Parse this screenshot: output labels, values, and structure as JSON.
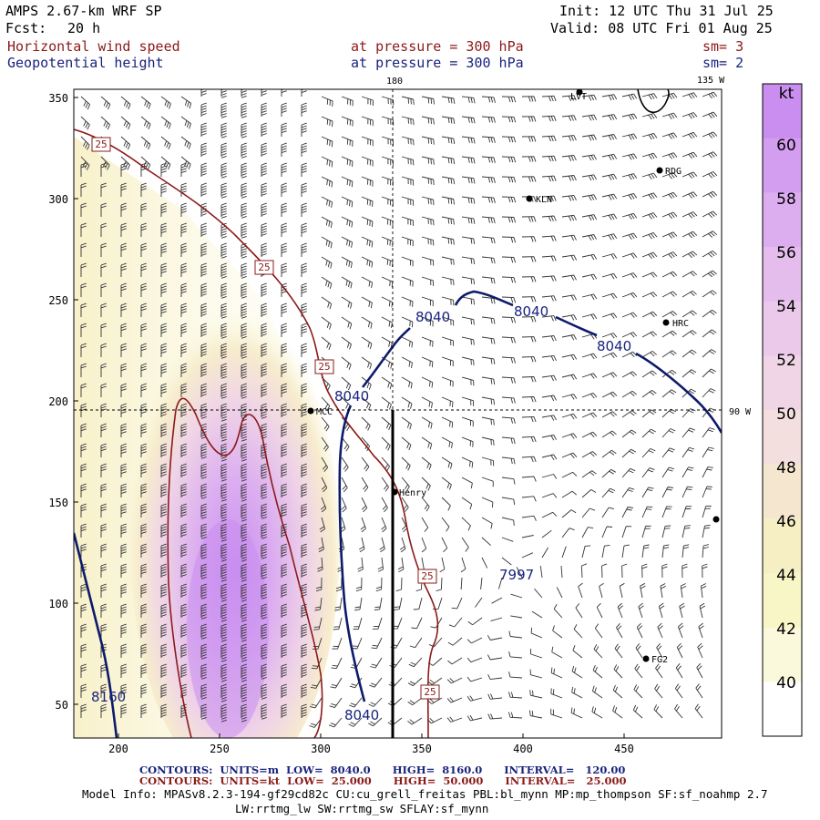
{
  "header": {
    "model": "AMPS 2.67-km WRF SP",
    "init": "Init: 12 UTC Thu 31 Jul 25",
    "fcst_label": "Fcst:",
    "fcst_value": "20 h",
    "valid": "Valid: 08 UTC Fri 01 Aug 25",
    "field1": "Horizontal wind speed",
    "field1_level": "at pressure =  300 hPa",
    "field1_sm": "sm= 3",
    "field2": "Geopotential height",
    "field2_level": "at pressure =  300 hPa",
    "field2_sm": "sm= 2"
  },
  "map": {
    "meridian_180": "180",
    "meridian_135w": "135 W",
    "parallel_90w": "90 W",
    "y_ticks": [
      "350",
      "300",
      "250",
      "200",
      "150",
      "100",
      "50"
    ],
    "x_ticks": [
      "200",
      "250",
      "300",
      "350",
      "400",
      "450"
    ],
    "stations": [
      "LVT",
      "RDG",
      "KLN",
      "HRC",
      "MCC",
      "Henry",
      "FG2"
    ],
    "height_labels": [
      "8040",
      "8040",
      "8040",
      "8040",
      "7997",
      "8160",
      "8040"
    ],
    "wind_labels": [
      "25",
      "25",
      "25",
      "25",
      "25"
    ]
  },
  "colorbar": {
    "unit": "kt",
    "labels": [
      "60",
      "58",
      "56",
      "54",
      "52",
      "50",
      "48",
      "46",
      "44",
      "42",
      "40"
    ],
    "colors": [
      "#c98ef0",
      "#d39ef0",
      "#dcaef0",
      "#e4bded",
      "#ebc9ea",
      "#f0d5e6",
      "#f3dfdd",
      "#f5e7cf",
      "#f6efc4",
      "#f8f5c6",
      "#fbf9dc",
      "#ffffff"
    ]
  },
  "footer": {
    "line1": "CONTOURS:  UNITS=m  LOW=  8040.0      HIGH=  8160.0      INTERVAL=   120.00",
    "line2": "CONTOURS:  UNITS=kt  LOW=  25.000      HIGH=  50.000      INTERVAL=   25.000",
    "model_info": "Model Info: MPASv8.2.3-194-gf29cd82c CU:cu_grell_freitas PBL:bl_mynn MP:mp_thompson SF:sf_noahmp 2.7",
    "model_info2": "LW:rrtmg_lw SW:rrtmg_sw SFLAY:sf_mynn"
  }
}
